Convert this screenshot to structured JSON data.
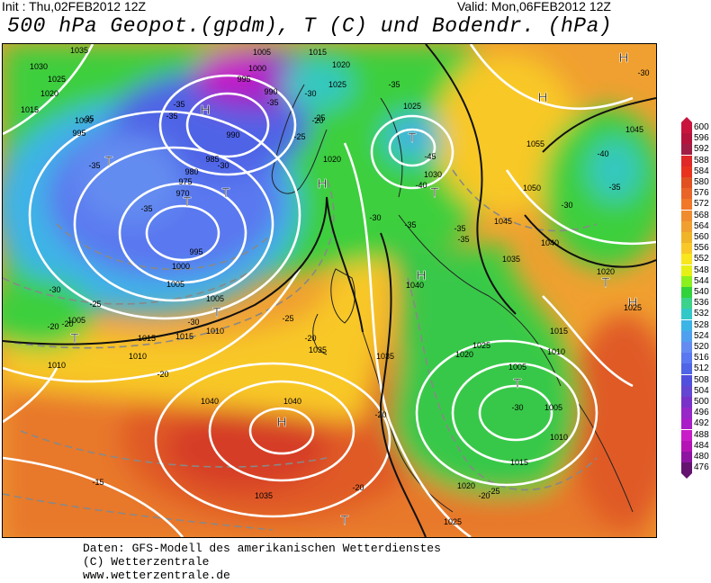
{
  "header": {
    "init": "Init : Thu,02FEB2012 12Z",
    "valid": "Valid: Mon,06FEB2012 12Z",
    "title": "500 hPa Geopot.(gpdm), T (C) und Bodendr. (hPa)"
  },
  "footer": {
    "line1": "Daten: GFS-Modell des amerikanischen Wetterdienstes",
    "line2": "(C) Wetterzentrale",
    "line3": "www.wetterzentrale.de"
  },
  "colorbar": {
    "levels": [
      "600",
      "596",
      "592",
      "588",
      "584",
      "580",
      "576",
      "572",
      "568",
      "564",
      "560",
      "556",
      "552",
      "548",
      "544",
      "540",
      "536",
      "532",
      "528",
      "524",
      "520",
      "516",
      "512",
      "508",
      "504",
      "500",
      "496",
      "492",
      "488",
      "484",
      "480",
      "476"
    ],
    "colors": [
      "#c8143c",
      "#b4143c",
      "#a01e46",
      "#e02828",
      "#e8321e",
      "#e05020",
      "#e86428",
      "#f07828",
      "#f08c30",
      "#f0a030",
      "#f0b428",
      "#f8c828",
      "#f8e61e",
      "#e6f014",
      "#8cf01e",
      "#32d23c",
      "#3cd28c",
      "#32c8c8",
      "#3cb4e6",
      "#50a0f0",
      "#648cf0",
      "#5a78f0",
      "#5064e6",
      "#5050dc",
      "#6446d2",
      "#7832c8",
      "#9628c8",
      "#aa1ec8",
      "#c81ec8",
      "#b414b4",
      "#8c14a0",
      "#64146e"
    ]
  },
  "map": {
    "pressure_systems": [
      {
        "symbol": "H",
        "kind": "high"
      },
      {
        "symbol": "H",
        "kind": "high"
      },
      {
        "symbol": "H",
        "kind": "high"
      },
      {
        "symbol": "H",
        "kind": "high"
      },
      {
        "symbol": "H",
        "kind": "high"
      },
      {
        "symbol": "H",
        "kind": "high"
      },
      {
        "symbol": "H",
        "kind": "high"
      },
      {
        "symbol": "T",
        "kind": "low"
      },
      {
        "symbol": "T",
        "kind": "low"
      },
      {
        "symbol": "T",
        "kind": "low"
      },
      {
        "symbol": "T",
        "kind": "low"
      },
      {
        "symbol": "T",
        "kind": "low"
      },
      {
        "symbol": "T",
        "kind": "low"
      },
      {
        "symbol": "T",
        "kind": "low"
      },
      {
        "symbol": "T",
        "kind": "low"
      },
      {
        "symbol": "T",
        "kind": "low"
      },
      {
        "symbol": "T",
        "kind": "low"
      }
    ],
    "isobar_labels": [
      "1035",
      "1015",
      "1030",
      "1025",
      "1020",
      "1015",
      "1000",
      "995",
      "1005",
      "1000",
      "995",
      "990",
      "990",
      "985",
      "980",
      "975",
      "970",
      "995",
      "1000",
      "1005",
      "1005",
      "1010",
      "1015",
      "1020",
      "1025",
      "1020",
      "1030",
      "1025",
      "1035",
      "1040",
      "1045",
      "1055",
      "1050",
      "1045",
      "1040",
      "1035",
      "1040",
      "1020",
      "1025",
      "1035",
      "1025",
      "1020",
      "1015",
      "1010",
      "1005",
      "1005",
      "1010",
      "1015",
      "1020",
      "1025",
      "1035",
      "1040",
      "1010",
      "1015",
      "1005",
      "1010"
    ],
    "temp_labels": [
      "-35",
      "-35",
      "-35",
      "-30",
      "-25",
      "-35",
      "-20",
      "-35",
      "-30",
      "-35",
      "-45",
      "-40",
      "-30",
      "-35",
      "-35",
      "-35",
      "-30",
      "-40",
      "-35",
      "-30",
      "-25",
      "-25",
      "-30",
      "-20",
      "-20",
      "-15",
      "-20",
      "-20",
      "-35",
      "-30",
      "-20",
      "-25",
      "-30",
      "-25",
      "-20",
      "-20"
    ]
  }
}
